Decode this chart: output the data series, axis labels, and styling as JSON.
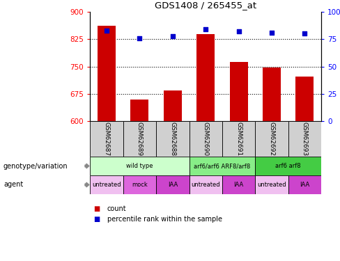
{
  "title": "GDS1408 / 265455_at",
  "samples": [
    "GSM62687",
    "GSM62689",
    "GSM62688",
    "GSM62690",
    "GSM62691",
    "GSM62692",
    "GSM62693"
  ],
  "counts": [
    862,
    660,
    685,
    838,
    762,
    748,
    722
  ],
  "percentiles": [
    83,
    76,
    78,
    84,
    82,
    81,
    80
  ],
  "ylim_left": [
    600,
    900
  ],
  "ylim_right": [
    0,
    100
  ],
  "yticks_left": [
    600,
    675,
    750,
    825,
    900
  ],
  "yticks_right": [
    0,
    25,
    50,
    75,
    100
  ],
  "ytick_labels_left": [
    "600",
    "675",
    "750",
    "825",
    "900"
  ],
  "ytick_labels_right": [
    "0",
    "25",
    "50",
    "75",
    "100%"
  ],
  "bar_color": "#cc0000",
  "dot_color": "#0000cc",
  "genotype_groups": [
    {
      "label": "wild type",
      "start": 0,
      "end": 3,
      "color": "#ccffcc"
    },
    {
      "label": "arf6/arf6 ARF8/arf8",
      "start": 3,
      "end": 5,
      "color": "#88ee88"
    },
    {
      "label": "arf6 arf8",
      "start": 5,
      "end": 7,
      "color": "#44cc44"
    }
  ],
  "agent_groups": [
    {
      "label": "untreated",
      "start": 0,
      "end": 1,
      "color": "#f0c0f0"
    },
    {
      "label": "mock",
      "start": 1,
      "end": 2,
      "color": "#dd66dd"
    },
    {
      "label": "IAA",
      "start": 2,
      "end": 3,
      "color": "#cc44cc"
    },
    {
      "label": "untreated",
      "start": 3,
      "end": 4,
      "color": "#f0c0f0"
    },
    {
      "label": "IAA",
      "start": 4,
      "end": 5,
      "color": "#cc44cc"
    },
    {
      "label": "untreated",
      "start": 5,
      "end": 6,
      "color": "#f0c0f0"
    },
    {
      "label": "IAA",
      "start": 6,
      "end": 7,
      "color": "#cc44cc"
    }
  ],
  "legend_count_label": "count",
  "legend_pct_label": "percentile rank within the sample",
  "label_genotype": "genotype/variation",
  "label_agent": "agent",
  "sample_box_color": "#d0d0d0",
  "bar_width": 0.55
}
